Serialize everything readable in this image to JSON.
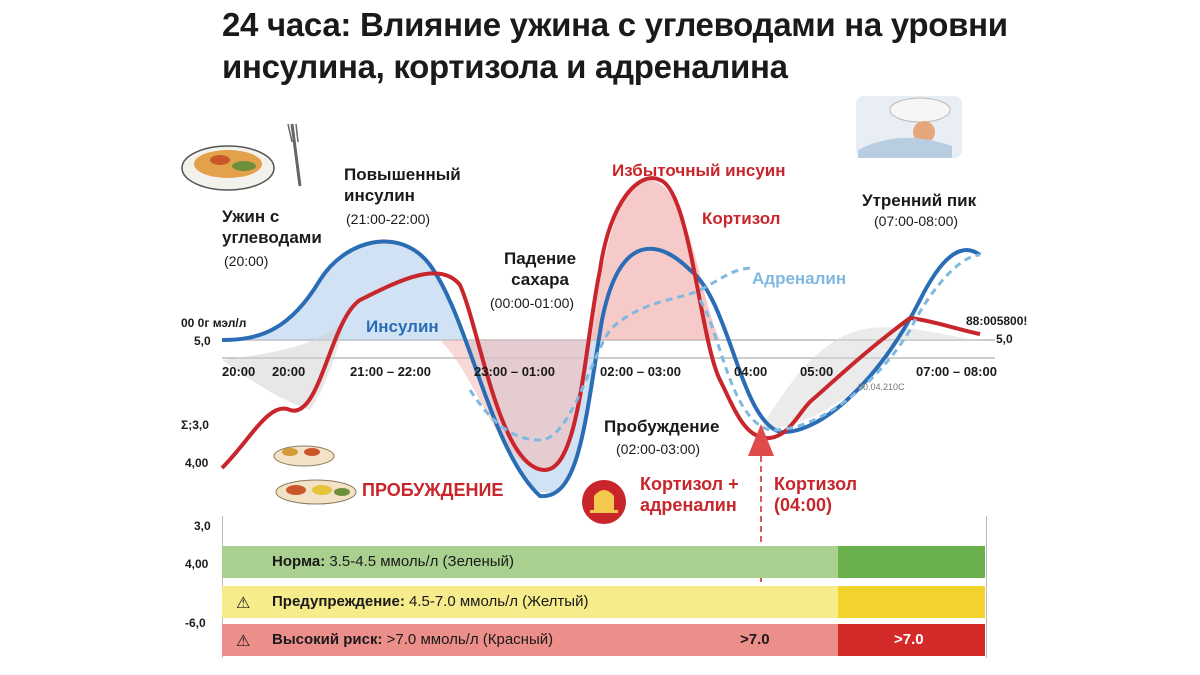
{
  "title_line1": "24 часа: Влияние ужина с углеводами на уровни",
  "title_line2": "инсулина, кортизола и адреналина",
  "annotations": {
    "dinner": "Ужин с",
    "dinner2": "углеводами",
    "dinner_time": "(20:00)",
    "high_insulin": "Повышенный",
    "high_insulin2": "инсулин",
    "high_insulin_time": "(21:00-22:00)",
    "sugar_drop": "Падение",
    "sugar_drop2": "сахара",
    "sugar_drop_time": "(00:00-01:00)",
    "excess_insulin": "Избыточный инсуин",
    "cortisol": "Кортизол",
    "adrenaline": "Адреналин",
    "morning_peak": "Утренний пик",
    "morning_peak_time": "(07:00-08:00)",
    "insulin": "Инсулин",
    "wakeup": "Пробуждение",
    "wakeup_time": "(02:00-03:00)",
    "wakeup_caps": "ПРОБУЖДЕНИЕ",
    "cort_adr": "Кортизол +",
    "cort_adr2": "адреналин",
    "cort_0400": "Кортизол",
    "cort_0400_time": "(04:00)",
    "right_value": "88:005800!",
    "right_value2": "5,0",
    "small_time": "00.04.210C"
  },
  "y_labels": {
    "top": "00 0г мэл/л",
    "five": "5,0",
    "sigma": "Σ;3,0",
    "four": "4,00",
    "band_30": "3,0",
    "band_400": "4,00",
    "band_neg6": "-6,0"
  },
  "x_ticks": [
    "20:00",
    "20:00",
    "21:00 –  22:00",
    "23:00 –  01:00",
    "02:00 –  03:00",
    "04:00",
    "05:00",
    "07:00 –  08:00"
  ],
  "bands": {
    "norm_label": "Норма:",
    "norm_text": " 3.5-4.5 ммоль/л (Зеленый)",
    "warn_label": "Предупреждение:",
    "warn_text": " 4.5-7.0 ммоль/л (Желтый)",
    "risk_label": "Высокий риск:",
    "risk_text": " >7.0 ммоль/л (Красный)",
    "risk_value1": ">7.0",
    "risk_value2": ">7.0"
  },
  "colors": {
    "insulin": "#2a6db5",
    "cortisol": "#c8262c",
    "adrenaline": "#7fb8e0",
    "norm": "#a9d08e",
    "norm_dark": "#6ab04c",
    "warn": "#f7ec8c",
    "warn_dark": "#f2d22c",
    "risk": "#ec8e8a",
    "risk_dark": "#d42a2a"
  },
  "chart_data": {
    "type": "line",
    "x": [
      "20:00",
      "20:00",
      "21:00",
      "22:00",
      "23:00",
      "01:00",
      "02:00",
      "03:00",
      "04:00",
      "05:00",
      "07:00",
      "08:00"
    ],
    "series": [
      {
        "name": "Инсулин",
        "values": [
          5.0,
          5.4,
          7.1,
          6.4,
          4.3,
          1.7,
          5.6,
          7.2,
          5.4,
          3.8,
          5.6,
          6.3
        ]
      },
      {
        "name": "Кортизол",
        "values": [
          3.4,
          4.0,
          5.1,
          5.8,
          5.4,
          2.1,
          7.0,
          8.9,
          5.8,
          4.9,
          5.3,
          5.1
        ]
      },
      {
        "name": "Адреналин",
        "values": [
          5.0,
          5.2,
          6.8,
          6.0,
          4.8,
          2.9,
          4.2,
          5.6,
          5.6,
          4.0,
          5.0,
          6.1
        ]
      }
    ],
    "ylim": [
      0,
      10
    ]
  }
}
